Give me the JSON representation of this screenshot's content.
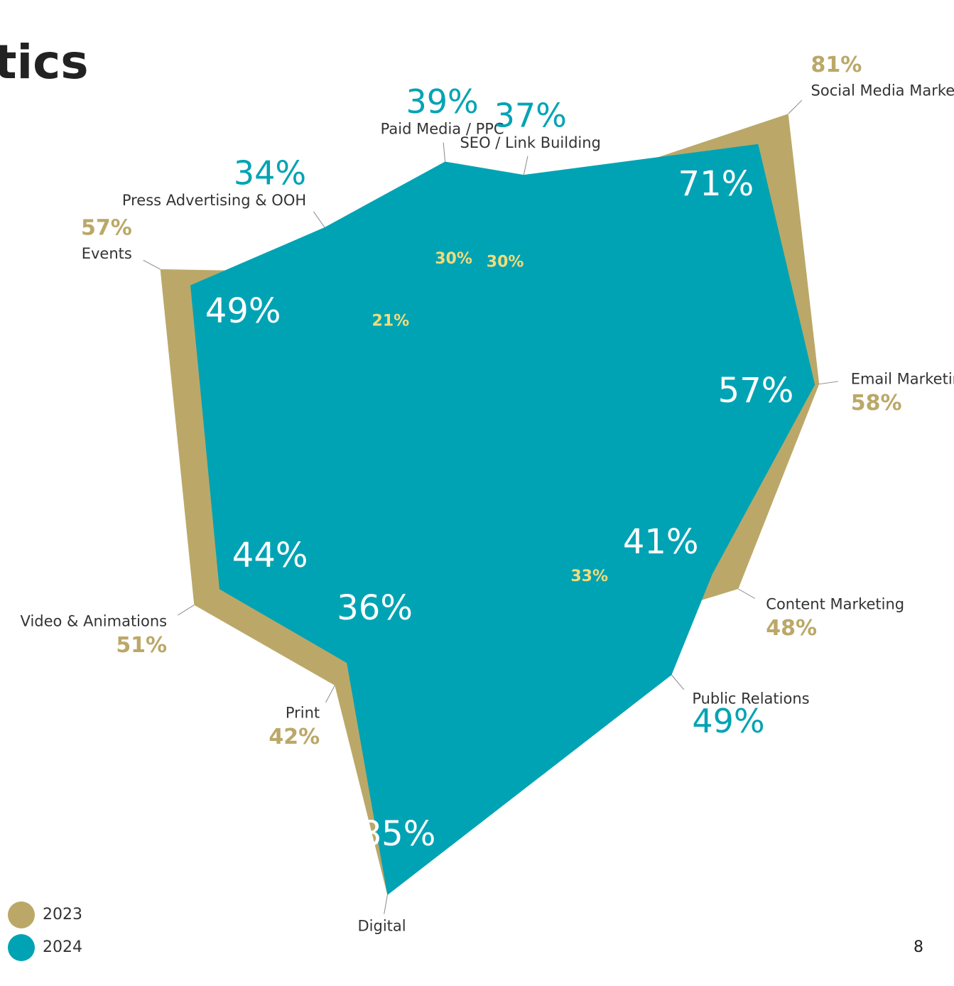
{
  "chart_data": {
    "type": "radar",
    "title": "tics",
    "categories": [
      "Social Media Marketing",
      "Email Marketing",
      "Content Marketing",
      "Public Relations",
      "Digital",
      "Print",
      "Video & Animations",
      "Events",
      "Press Advertising & OOH",
      "Paid Media / PPC",
      "SEO / Link Building"
    ],
    "series": [
      {
        "name": "2023",
        "color": "#bba868",
        "values": [
          81,
          58,
          48,
          33,
          85,
          42,
          51,
          57,
          21,
          30,
          30
        ],
        "value_labels": [
          "81%",
          "58%",
          "48%",
          "33%",
          null,
          "42%",
          "51%",
          "57%",
          "21%",
          "30%",
          "30%"
        ]
      },
      {
        "name": "2024",
        "color": "#00a3b4",
        "values": [
          71,
          57,
          41,
          49,
          85,
          36,
          44,
          49,
          34,
          39,
          37
        ],
        "value_labels": [
          "71%",
          "57%",
          "41%",
          "49%",
          "85%",
          "36%",
          "44%",
          "49%",
          "34%",
          "39%",
          "37%"
        ]
      }
    ]
  },
  "page_number": "8"
}
